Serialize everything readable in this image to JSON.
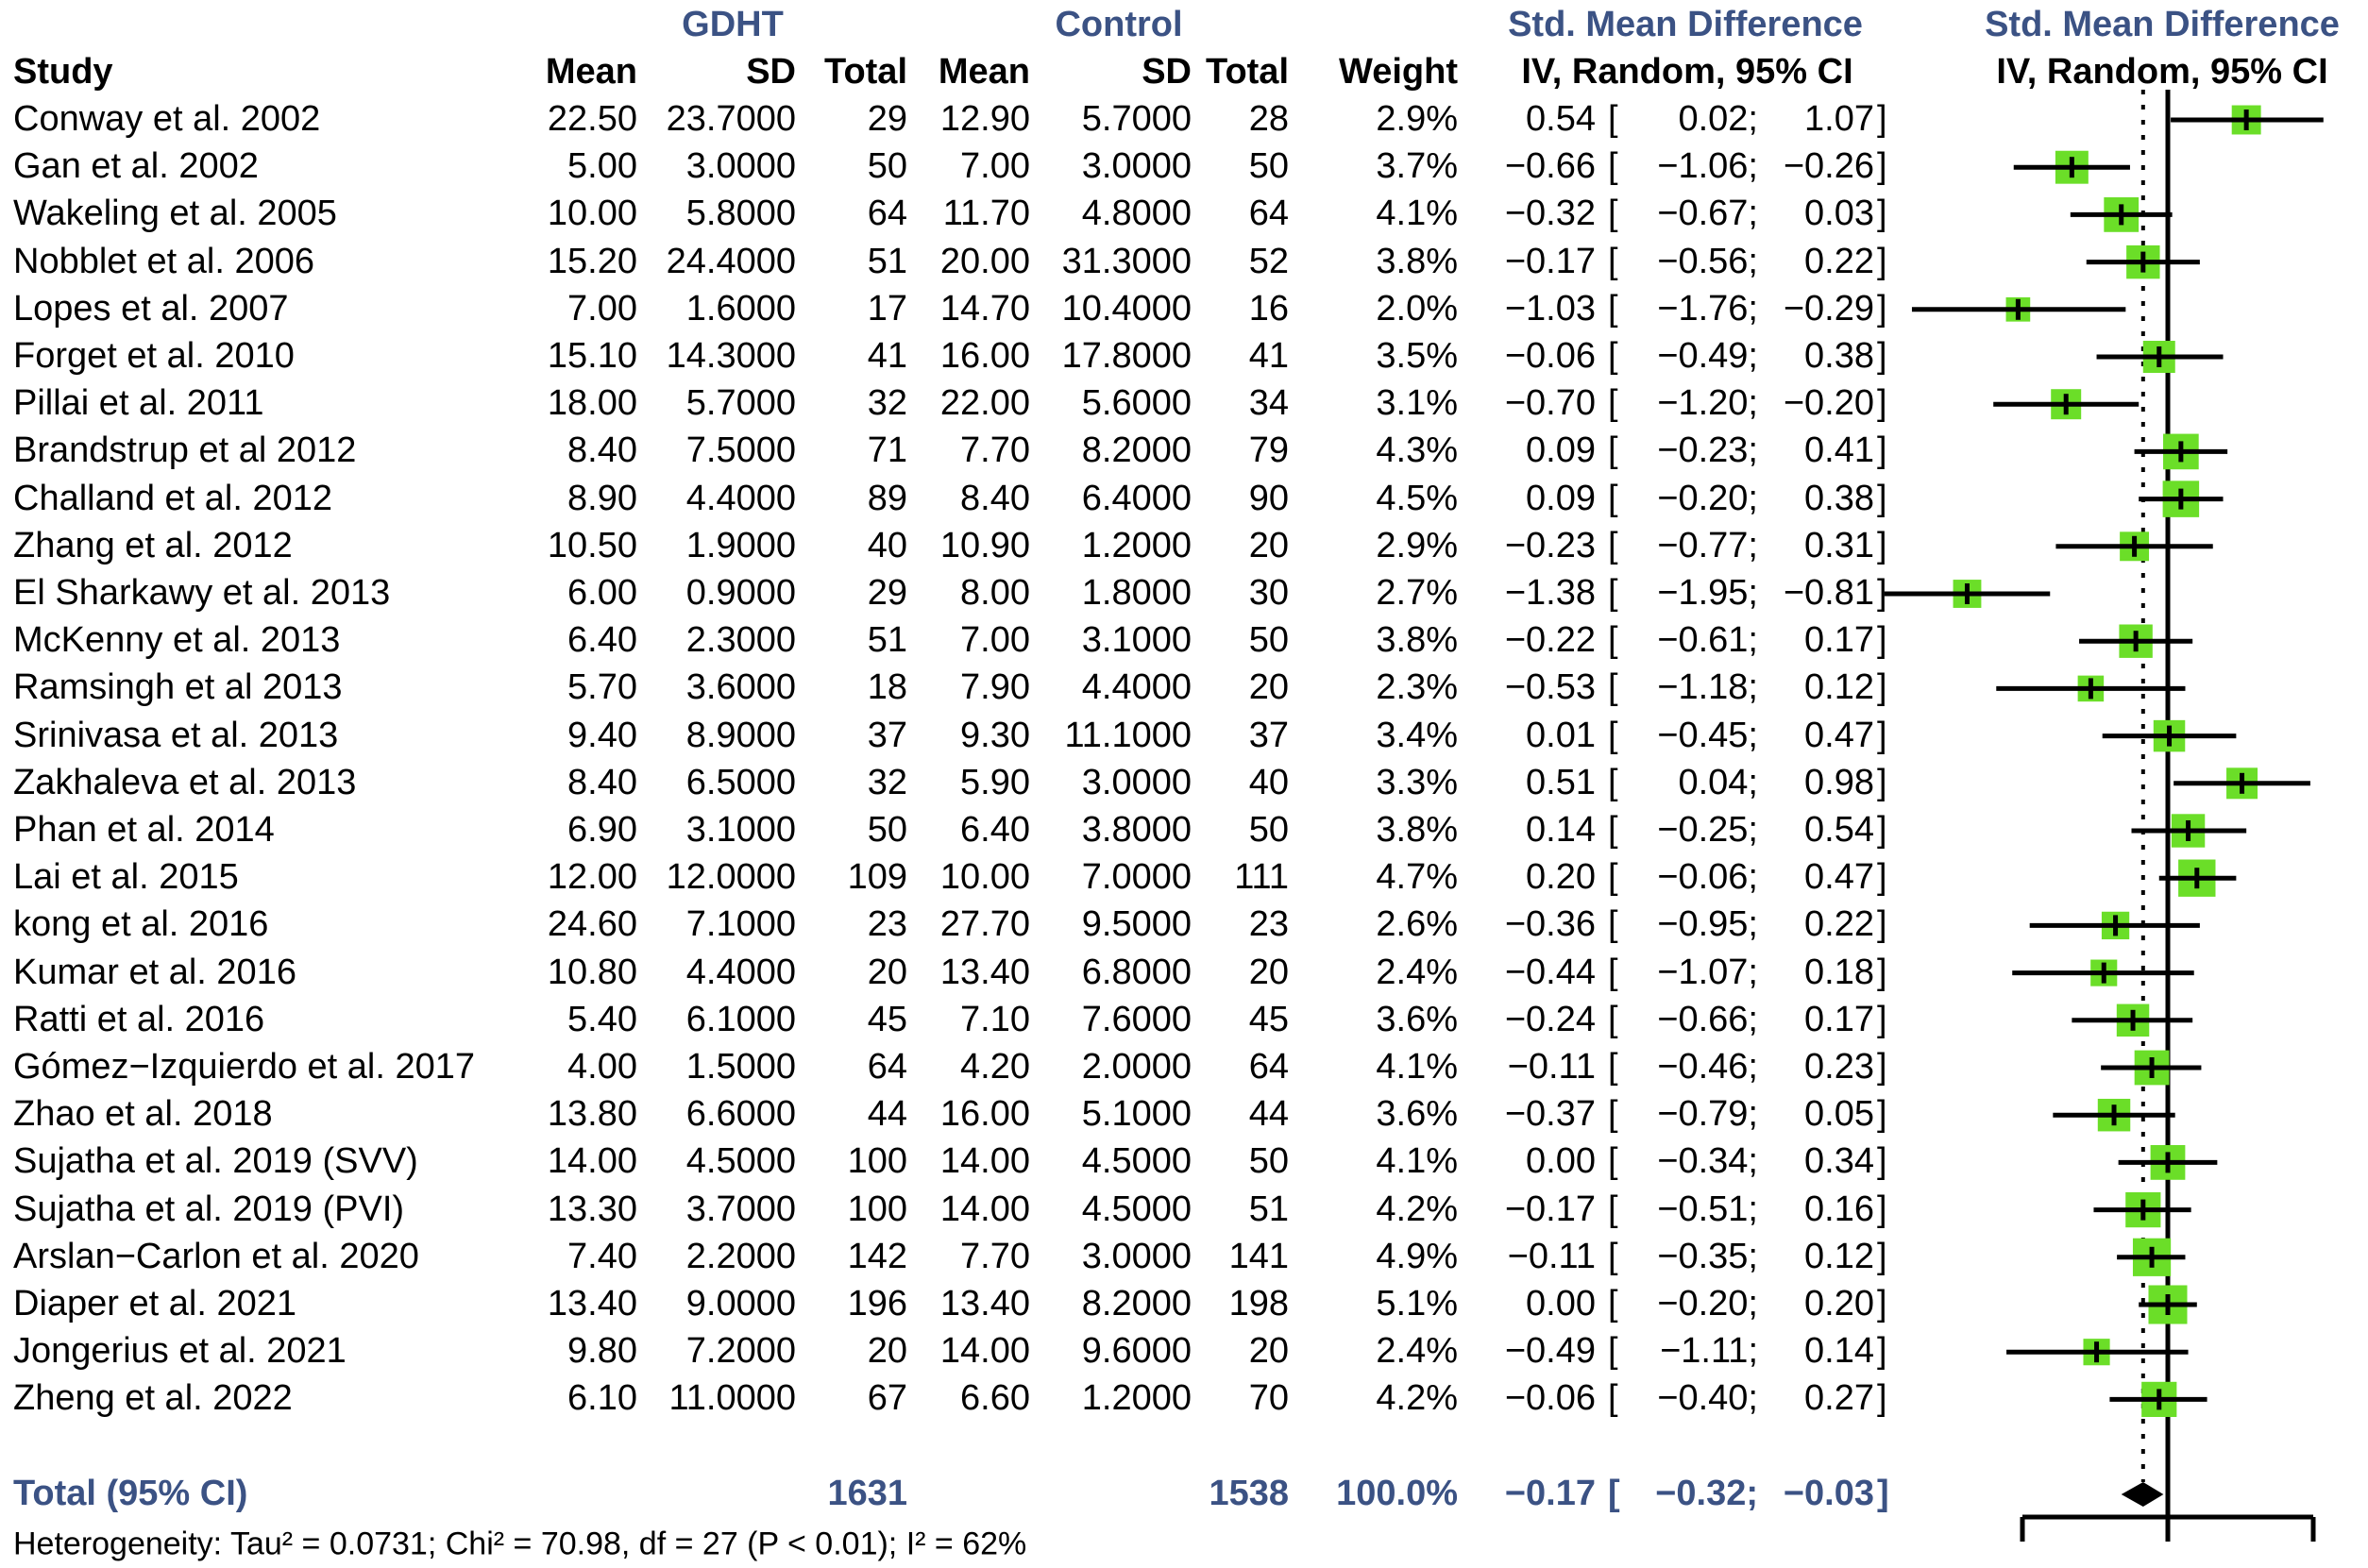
{
  "header": {
    "group1_label": "GDHT",
    "group2_label": "Control",
    "smd_label_text_col": "Std. Mean Difference",
    "smd_label_plot_col": "Std. Mean Difference",
    "model_label_text_col": "IV, Random, 95% CI",
    "model_label_plot_col": "IV, Random, 95% CI",
    "study_col": "Study",
    "mean_col": "Mean",
    "sd_col": "SD",
    "total_col": "Total",
    "weight_col": "Weight"
  },
  "colors": {
    "header_blue": "#3B5284",
    "marker_green": "#6BDE28",
    "line_black": "#000000"
  },
  "chart_data": {
    "type": "forest",
    "x_axis": {
      "min": -1,
      "max": 1,
      "zero_line": 0,
      "tick_labels_visible": false
    },
    "studies": [
      {
        "name": "Conway et al. 2002",
        "g_mean": 22.5,
        "g_sd": 23.7,
        "g_n": 29,
        "c_mean": 12.9,
        "c_sd": 5.7,
        "c_n": 28,
        "weight": 2.9,
        "smd": 0.54,
        "lo": 0.02,
        "hi": 1.07
      },
      {
        "name": "Gan et al. 2002",
        "g_mean": 5.0,
        "g_sd": 3.0,
        "g_n": 50,
        "c_mean": 7.0,
        "c_sd": 3.0,
        "c_n": 50,
        "weight": 3.7,
        "smd": -0.66,
        "lo": -1.06,
        "hi": -0.26
      },
      {
        "name": "Wakeling et al. 2005",
        "g_mean": 10.0,
        "g_sd": 5.8,
        "g_n": 64,
        "c_mean": 11.7,
        "c_sd": 4.8,
        "c_n": 64,
        "weight": 4.1,
        "smd": -0.32,
        "lo": -0.67,
        "hi": 0.03
      },
      {
        "name": "Nobblet et al. 2006",
        "g_mean": 15.2,
        "g_sd": 24.4,
        "g_n": 51,
        "c_mean": 20.0,
        "c_sd": 31.3,
        "c_n": 52,
        "weight": 3.8,
        "smd": -0.17,
        "lo": -0.56,
        "hi": 0.22
      },
      {
        "name": "Lopes et al. 2007",
        "g_mean": 7.0,
        "g_sd": 1.6,
        "g_n": 17,
        "c_mean": 14.7,
        "c_sd": 10.4,
        "c_n": 16,
        "weight": 2.0,
        "smd": -1.03,
        "lo": -1.76,
        "hi": -0.29
      },
      {
        "name": "Forget et al. 2010",
        "g_mean": 15.1,
        "g_sd": 14.3,
        "g_n": 41,
        "c_mean": 16.0,
        "c_sd": 17.8,
        "c_n": 41,
        "weight": 3.5,
        "smd": -0.06,
        "lo": -0.49,
        "hi": 0.38
      },
      {
        "name": "Pillai et al. 2011",
        "g_mean": 18.0,
        "g_sd": 5.7,
        "g_n": 32,
        "c_mean": 22.0,
        "c_sd": 5.6,
        "c_n": 34,
        "weight": 3.1,
        "smd": -0.7,
        "lo": -1.2,
        "hi": -0.2
      },
      {
        "name": "Brandstrup et al 2012",
        "g_mean": 8.4,
        "g_sd": 7.5,
        "g_n": 71,
        "c_mean": 7.7,
        "c_sd": 8.2,
        "c_n": 79,
        "weight": 4.3,
        "smd": 0.09,
        "lo": -0.23,
        "hi": 0.41
      },
      {
        "name": "Challand et al. 2012",
        "g_mean": 8.9,
        "g_sd": 4.4,
        "g_n": 89,
        "c_mean": 8.4,
        "c_sd": 6.4,
        "c_n": 90,
        "weight": 4.5,
        "smd": 0.09,
        "lo": -0.2,
        "hi": 0.38
      },
      {
        "name": "Zhang et al. 2012",
        "g_mean": 10.5,
        "g_sd": 1.9,
        "g_n": 40,
        "c_mean": 10.9,
        "c_sd": 1.2,
        "c_n": 20,
        "weight": 2.9,
        "smd": -0.23,
        "lo": -0.77,
        "hi": 0.31
      },
      {
        "name": "El Sharkawy et al. 2013",
        "g_mean": 6.0,
        "g_sd": 0.9,
        "g_n": 29,
        "c_mean": 8.0,
        "c_sd": 1.8,
        "c_n": 30,
        "weight": 2.7,
        "smd": -1.38,
        "lo": -1.95,
        "hi": -0.81
      },
      {
        "name": "McKenny et al. 2013",
        "g_mean": 6.4,
        "g_sd": 2.3,
        "g_n": 51,
        "c_mean": 7.0,
        "c_sd": 3.1,
        "c_n": 50,
        "weight": 3.8,
        "smd": -0.22,
        "lo": -0.61,
        "hi": 0.17
      },
      {
        "name": "Ramsingh et al 2013",
        "g_mean": 5.7,
        "g_sd": 3.6,
        "g_n": 18,
        "c_mean": 7.9,
        "c_sd": 4.4,
        "c_n": 20,
        "weight": 2.3,
        "smd": -0.53,
        "lo": -1.18,
        "hi": 0.12
      },
      {
        "name": "Srinivasa et al. 2013",
        "g_mean": 9.4,
        "g_sd": 8.9,
        "g_n": 37,
        "c_mean": 9.3,
        "c_sd": 11.1,
        "c_n": 37,
        "weight": 3.4,
        "smd": 0.01,
        "lo": -0.45,
        "hi": 0.47
      },
      {
        "name": "Zakhaleva et al. 2013",
        "g_mean": 8.4,
        "g_sd": 6.5,
        "g_n": 32,
        "c_mean": 5.9,
        "c_sd": 3.0,
        "c_n": 40,
        "weight": 3.3,
        "smd": 0.51,
        "lo": 0.04,
        "hi": 0.98
      },
      {
        "name": "Phan et al. 2014",
        "g_mean": 6.9,
        "g_sd": 3.1,
        "g_n": 50,
        "c_mean": 6.4,
        "c_sd": 3.8,
        "c_n": 50,
        "weight": 3.8,
        "smd": 0.14,
        "lo": -0.25,
        "hi": 0.54
      },
      {
        "name": "Lai et al. 2015",
        "g_mean": 12.0,
        "g_sd": 12.0,
        "g_n": 109,
        "c_mean": 10.0,
        "c_sd": 7.0,
        "c_n": 111,
        "weight": 4.7,
        "smd": 0.2,
        "lo": -0.06,
        "hi": 0.47
      },
      {
        "name": "kong et al. 2016",
        "g_mean": 24.6,
        "g_sd": 7.1,
        "g_n": 23,
        "c_mean": 27.7,
        "c_sd": 9.5,
        "c_n": 23,
        "weight": 2.6,
        "smd": -0.36,
        "lo": -0.95,
        "hi": 0.22
      },
      {
        "name": "Kumar et al. 2016",
        "g_mean": 10.8,
        "g_sd": 4.4,
        "g_n": 20,
        "c_mean": 13.4,
        "c_sd": 6.8,
        "c_n": 20,
        "weight": 2.4,
        "smd": -0.44,
        "lo": -1.07,
        "hi": 0.18
      },
      {
        "name": "Ratti et al. 2016",
        "g_mean": 5.4,
        "g_sd": 6.1,
        "g_n": 45,
        "c_mean": 7.1,
        "c_sd": 7.6,
        "c_n": 45,
        "weight": 3.6,
        "smd": -0.24,
        "lo": -0.66,
        "hi": 0.17
      },
      {
        "name": "Gómez−Izquierdo et al. 2017",
        "g_mean": 4.0,
        "g_sd": 1.5,
        "g_n": 64,
        "c_mean": 4.2,
        "c_sd": 2.0,
        "c_n": 64,
        "weight": 4.1,
        "smd": -0.11,
        "lo": -0.46,
        "hi": 0.23
      },
      {
        "name": "Zhao et al. 2018",
        "g_mean": 13.8,
        "g_sd": 6.6,
        "g_n": 44,
        "c_mean": 16.0,
        "c_sd": 5.1,
        "c_n": 44,
        "weight": 3.6,
        "smd": -0.37,
        "lo": -0.79,
        "hi": 0.05
      },
      {
        "name": "Sujatha et al. 2019 (SVV)",
        "g_mean": 14.0,
        "g_sd": 4.5,
        "g_n": 100,
        "c_mean": 14.0,
        "c_sd": 4.5,
        "c_n": 50,
        "weight": 4.1,
        "smd": 0.0,
        "lo": -0.34,
        "hi": 0.34
      },
      {
        "name": "Sujatha et al. 2019 (PVI)",
        "g_mean": 13.3,
        "g_sd": 3.7,
        "g_n": 100,
        "c_mean": 14.0,
        "c_sd": 4.5,
        "c_n": 51,
        "weight": 4.2,
        "smd": -0.17,
        "lo": -0.51,
        "hi": 0.16
      },
      {
        "name": "Arslan−Carlon et al. 2020",
        "g_mean": 7.4,
        "g_sd": 2.2,
        "g_n": 142,
        "c_mean": 7.7,
        "c_sd": 3.0,
        "c_n": 141,
        "weight": 4.9,
        "smd": -0.11,
        "lo": -0.35,
        "hi": 0.12
      },
      {
        "name": "Diaper et al. 2021",
        "g_mean": 13.4,
        "g_sd": 9.0,
        "g_n": 196,
        "c_mean": 13.4,
        "c_sd": 8.2,
        "c_n": 198,
        "weight": 5.1,
        "smd": 0.0,
        "lo": -0.2,
        "hi": 0.2
      },
      {
        "name": "Jongerius et al. 2021",
        "g_mean": 9.8,
        "g_sd": 7.2,
        "g_n": 20,
        "c_mean": 14.0,
        "c_sd": 9.6,
        "c_n": 20,
        "weight": 2.4,
        "smd": -0.49,
        "lo": -1.11,
        "hi": 0.14
      },
      {
        "name": "Zheng et al. 2022",
        "g_mean": 6.1,
        "g_sd": 11.0,
        "g_n": 67,
        "c_mean": 6.6,
        "c_sd": 1.2,
        "c_n": 70,
        "weight": 4.2,
        "smd": -0.06,
        "lo": -0.4,
        "hi": 0.27
      }
    ],
    "total": {
      "label": "Total (95% CI)",
      "g_n": 1631,
      "c_n": 1538,
      "weight": 100.0,
      "smd": -0.17,
      "lo": -0.32,
      "hi": -0.03
    },
    "heterogeneity": "Heterogeneity: Tau² = 0.0731; Chi² = 70.98, df = 27 (P < 0.01); I² = 62%"
  }
}
